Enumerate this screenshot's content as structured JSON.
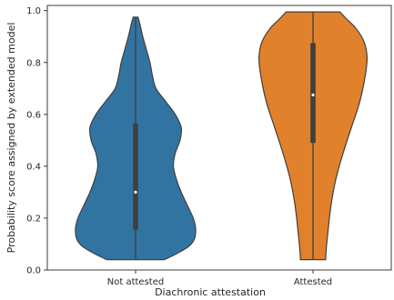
{
  "chart_data": {
    "type": "violin",
    "title": "",
    "xlabel": "Diachronic attestation",
    "ylabel": "Probability score assigned by extended model",
    "ylim": [
      0.0,
      1.02
    ],
    "yticks": [
      0.0,
      0.2,
      0.4,
      0.6,
      0.8,
      1.0
    ],
    "ytick_labels": [
      "0.0",
      "0.2",
      "0.4",
      "0.6",
      "0.8",
      "1.0"
    ],
    "categories": [
      "Not attested",
      "Attested"
    ],
    "grid": false,
    "legend": "none",
    "violins": [
      {
        "category": "Not attested",
        "color": "#3274a1",
        "min": 0.04,
        "max": 0.975,
        "q1": 0.155,
        "median": 0.3,
        "q3": 0.565,
        "profile": [
          [
            0.04,
            0.48
          ],
          [
            0.06,
            0.66
          ],
          [
            0.09,
            0.88
          ],
          [
            0.12,
            0.98
          ],
          [
            0.16,
            1.0
          ],
          [
            0.2,
            0.96
          ],
          [
            0.25,
            0.86
          ],
          [
            0.3,
            0.76
          ],
          [
            0.35,
            0.68
          ],
          [
            0.4,
            0.63
          ],
          [
            0.45,
            0.66
          ],
          [
            0.5,
            0.74
          ],
          [
            0.55,
            0.76
          ],
          [
            0.6,
            0.66
          ],
          [
            0.65,
            0.5
          ],
          [
            0.7,
            0.34
          ],
          [
            0.75,
            0.28
          ],
          [
            0.8,
            0.24
          ],
          [
            0.85,
            0.18
          ],
          [
            0.9,
            0.12
          ],
          [
            0.95,
            0.07
          ],
          [
            0.975,
            0.04
          ]
        ]
      },
      {
        "category": "Attested",
        "color": "#e1812c",
        "min": 0.04,
        "max": 0.995,
        "q1": 0.49,
        "median": 0.675,
        "q3": 0.875,
        "profile": [
          [
            0.04,
            0.21
          ],
          [
            0.08,
            0.22
          ],
          [
            0.15,
            0.25
          ],
          [
            0.25,
            0.3
          ],
          [
            0.35,
            0.38
          ],
          [
            0.45,
            0.5
          ],
          [
            0.55,
            0.64
          ],
          [
            0.65,
            0.78
          ],
          [
            0.75,
            0.87
          ],
          [
            0.82,
            0.9
          ],
          [
            0.88,
            0.85
          ],
          [
            0.93,
            0.72
          ],
          [
            0.97,
            0.55
          ],
          [
            0.995,
            0.45
          ]
        ]
      }
    ]
  }
}
